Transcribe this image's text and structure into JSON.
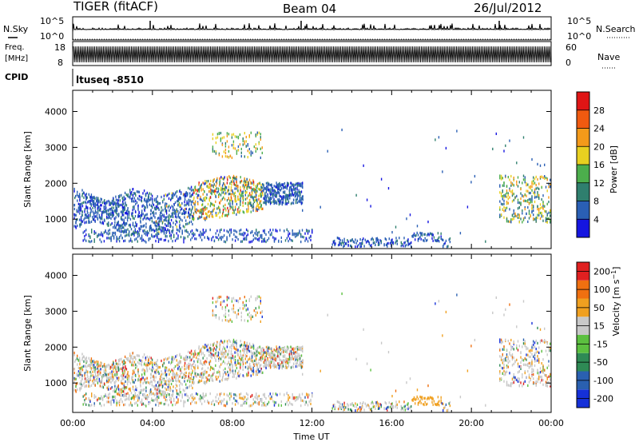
{
  "header": {
    "title": "TIGER (fitACF)",
    "beam": "Beam 04",
    "date": "26/Jul/2012"
  },
  "noise_panel": {
    "left_label": "N.Sky",
    "right_label": "N.Search",
    "tick_top": "10^5",
    "tick_bottom": "10^0",
    "right_tick_top": "10^5",
    "right_tick_bottom": "10^0"
  },
  "freq_panel": {
    "left_label_line1": "Freq.",
    "left_label_line2": "[MHz]",
    "right_label": "Nave",
    "left_ticks": [
      "18",
      "8"
    ],
    "right_ticks": [
      "60",
      "0"
    ]
  },
  "cpid_panel": {
    "label": "CPID",
    "value": "ltuseq -8510"
  },
  "chart_data": [
    {
      "type": "heatmap",
      "ylabel": "Slant Range [km]",
      "yticks": [
        1000,
        2000,
        3000,
        4000
      ],
      "ylim": [
        180,
        4590
      ],
      "xlim": [
        0,
        24
      ],
      "colorbar": {
        "label": "Power [dB]",
        "ticks": [
          "4",
          "8",
          "12",
          "16",
          "20",
          "24",
          "28"
        ],
        "colors": [
          "#1515e0",
          "#2a5fb5",
          "#2f7f6e",
          "#4cae4c",
          "#e8d020",
          "#f49a1a",
          "#f05a10",
          "#e01515"
        ]
      }
    },
    {
      "type": "heatmap",
      "ylabel": "Slant Range [km]",
      "yticks": [
        1000,
        2000,
        3000,
        4000
      ],
      "ylim": [
        180,
        4590
      ],
      "xlim": [
        0,
        24
      ],
      "xticks": [
        "00:00",
        "04:00",
        "08:00",
        "12:00",
        "16:00",
        "20:00",
        "00:00"
      ],
      "xlabel": "Time UT",
      "colorbar": {
        "label": "Velocity [m s^-1]",
        "ticks": [
          "200",
          "100",
          "50",
          "15",
          "-15",
          "-50",
          "-100",
          "-200"
        ],
        "colors": [
          "#1530d8",
          "#2a60b0",
          "#2e8a55",
          "#5cc040",
          "#c8c8c8",
          "#f0a020",
          "#f07010",
          "#e02020"
        ]
      }
    }
  ]
}
